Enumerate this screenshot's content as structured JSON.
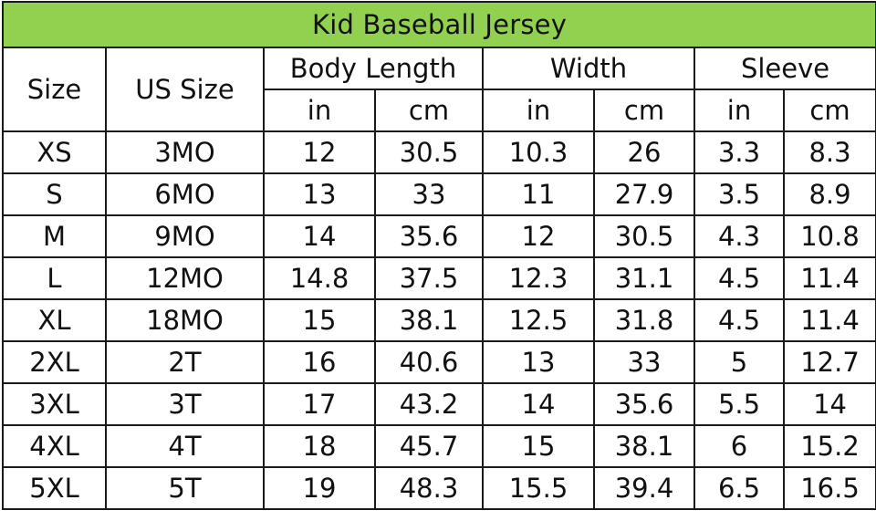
{
  "title": "Kid Baseball Jersey",
  "headers": {
    "size": "Size",
    "us_size": "US Size",
    "groups": [
      "Body Length",
      "Width",
      "Sleeve"
    ],
    "units": [
      "in",
      "cm",
      "in",
      "cm",
      "in",
      "cm"
    ]
  },
  "rows": [
    [
      "XS",
      "3MO",
      "12",
      "30.5",
      "10.3",
      "26",
      "3.3",
      "8.3"
    ],
    [
      "S",
      "6MO",
      "13",
      "33",
      "11",
      "27.9",
      "3.5",
      "8.9"
    ],
    [
      "M",
      "9MO",
      "14",
      "35.6",
      "12",
      "30.5",
      "4.3",
      "10.8"
    ],
    [
      "L",
      "12MO",
      "14.8",
      "37.5",
      "12.3",
      "31.1",
      "4.5",
      "11.4"
    ],
    [
      "XL",
      "18MO",
      "15",
      "38.1",
      "12.5",
      "31.8",
      "4.5",
      "11.4"
    ],
    [
      "2XL",
      "2T",
      "16",
      "40.6",
      "13",
      "33",
      "5",
      "12.7"
    ],
    [
      "3XL",
      "3T",
      "17",
      "43.2",
      "14",
      "35.6",
      "5.5",
      "14"
    ],
    [
      "4XL",
      "4T",
      "18",
      "45.7",
      "15",
      "38.1",
      "6",
      "15.2"
    ],
    [
      "5XL",
      "5T",
      "19",
      "48.3",
      "15.5",
      "39.4",
      "6.5",
      "16.5"
    ]
  ],
  "colors": {
    "title_background": "#92d050",
    "border": "#1a1a1a",
    "text": "#111111"
  }
}
